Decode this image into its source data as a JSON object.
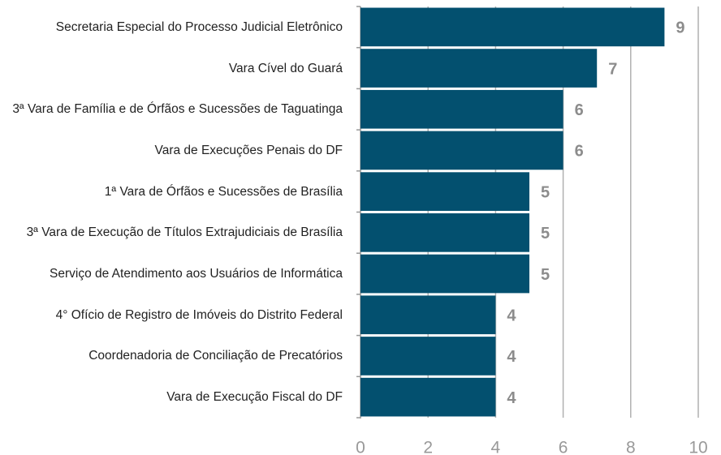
{
  "chart_data": {
    "type": "barh",
    "categories": [
      "Secretaria Especial do Processo Judicial Eletrônico",
      "Vara Cível do Guará",
      "3ª Vara de Família e de Órfãos e Sucessões de Taguatinga",
      "Vara de Execuções Penais do DF",
      "1ª Vara de Órfãos e Sucessões de Brasília",
      "3ª Vara de Execução de Títulos Extrajudiciais de Brasília",
      "Serviço de Atendimento aos Usuários de Informática",
      "4° Ofício de Registro de Imóveis do Distrito Federal",
      "Coordenadoria de Conciliação de Precatórios",
      "Vara de Execução Fiscal do DF"
    ],
    "values": [
      9,
      7,
      6,
      6,
      5,
      5,
      5,
      4,
      4,
      4
    ],
    "color": "#03506f",
    "xlim": [
      0,
      10
    ],
    "xticks": [
      0,
      2,
      4,
      6,
      8,
      10
    ],
    "grid": true
  }
}
